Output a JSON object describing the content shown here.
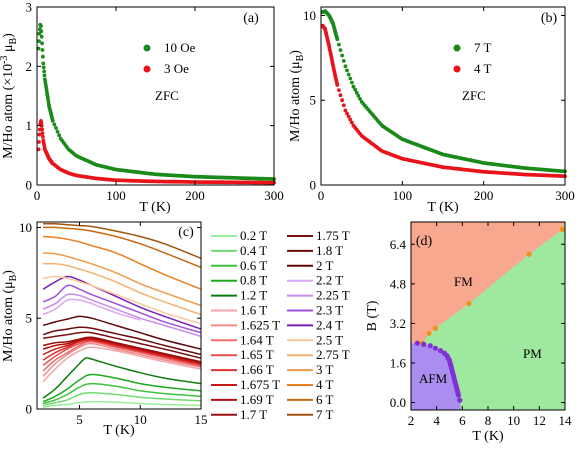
{
  "chart_data": [
    {
      "panel_label": "(a)",
      "type": "scatter",
      "xlabel": "T (K)",
      "ylabel": "M/Ho atom (×10⁻³ μ_B)",
      "ylabel_main": "M/Ho atom (×10",
      "ylabel_exp": "-3",
      "ylabel_mid": " μ",
      "ylabel_sub": "B",
      "ylabel_end": ")",
      "xlim": [
        0,
        300
      ],
      "ylim": [
        0,
        3
      ],
      "xticks": [
        "0",
        "100",
        "200",
        "300"
      ],
      "yticks": [
        "0",
        "1",
        "2",
        "3"
      ],
      "annotation": "ZFC",
      "series": [
        {
          "name": "10 Oe",
          "color": "#1a8a1a",
          "x": [
            2,
            3,
            4,
            5,
            6,
            8,
            10,
            15,
            20,
            30,
            40,
            50,
            75,
            100,
            150,
            200,
            250,
            300
          ],
          "y": [
            2.3,
            2.55,
            2.7,
            2.68,
            2.5,
            2.05,
            1.78,
            1.35,
            1.08,
            0.78,
            0.6,
            0.49,
            0.34,
            0.26,
            0.18,
            0.14,
            0.12,
            0.1
          ]
        },
        {
          "name": "3 Oe",
          "color": "#e8141a",
          "x": [
            2,
            3,
            4,
            5,
            6,
            8,
            10,
            15,
            20,
            30,
            40,
            50,
            75,
            100,
            150,
            200,
            250,
            300
          ],
          "y": [
            0.6,
            0.85,
            1.02,
            1.08,
            1.0,
            0.75,
            0.6,
            0.45,
            0.36,
            0.26,
            0.2,
            0.16,
            0.11,
            0.08,
            0.06,
            0.05,
            0.045,
            0.04
          ]
        }
      ]
    },
    {
      "panel_label": "(b)",
      "type": "scatter",
      "xlabel": "T (K)",
      "ylabel": "M/Ho atom (μ_B)",
      "ylabel_main": "M/Ho atom (μ",
      "ylabel_sub": "B",
      "ylabel_end": ")",
      "xlim": [
        0,
        300
      ],
      "ylim": [
        0,
        10.5
      ],
      "xticks": [
        "0",
        "100",
        "200",
        "300"
      ],
      "yticks": [
        "0",
        "5",
        "10"
      ],
      "annotation": "ZFC",
      "series": [
        {
          "name": "7 T",
          "color": "#1a8a1a",
          "x": [
            2,
            5,
            10,
            15,
            20,
            30,
            40,
            50,
            75,
            100,
            150,
            200,
            250,
            300
          ],
          "y": [
            10.2,
            10.25,
            10.0,
            9.5,
            8.6,
            7.0,
            5.8,
            4.9,
            3.5,
            2.7,
            1.8,
            1.3,
            1.0,
            0.8
          ]
        },
        {
          "name": "4 T",
          "color": "#e8141a",
          "x": [
            2,
            5,
            10,
            15,
            20,
            30,
            40,
            50,
            75,
            100,
            150,
            200,
            250,
            300
          ],
          "y": [
            9.4,
            9.2,
            8.2,
            7.0,
            5.9,
            4.4,
            3.5,
            2.9,
            2.0,
            1.55,
            1.05,
            0.78,
            0.62,
            0.52
          ]
        }
      ]
    },
    {
      "panel_label": "(c)",
      "type": "line",
      "xlabel": "T (K)",
      "ylabel": "M/Ho atom (μ_B)",
      "ylabel_main": "M/Ho atom (μ",
      "ylabel_sub": "B",
      "ylabel_end": ")",
      "xlim": [
        1.5,
        15
      ],
      "ylim": [
        0,
        10.3
      ],
      "xticks": [
        "5",
        "10",
        "15"
      ],
      "yticks": [
        "0",
        "5",
        "10"
      ],
      "series": [
        {
          "name": "0.2 T",
          "color": "#9aee9a",
          "x": [
            2,
            3,
            4,
            5,
            6,
            8,
            10,
            12,
            15
          ],
          "y": [
            0.1,
            0.2,
            0.25,
            0.35,
            0.4,
            0.38,
            0.3,
            0.25,
            0.2
          ]
        },
        {
          "name": "0.4 T",
          "color": "#6fdc6f",
          "x": [
            2,
            3,
            4,
            5,
            6,
            8,
            10,
            12,
            15
          ],
          "y": [
            0.2,
            0.35,
            0.5,
            0.8,
            0.9,
            0.8,
            0.65,
            0.55,
            0.45
          ]
        },
        {
          "name": "0.6 T",
          "color": "#3cc43c",
          "x": [
            2,
            3,
            4,
            5,
            6,
            8,
            10,
            12,
            15
          ],
          "y": [
            0.3,
            0.5,
            0.8,
            1.2,
            1.4,
            1.25,
            1.0,
            0.85,
            0.7
          ]
        },
        {
          "name": "0.8 T",
          "color": "#1fa81f",
          "x": [
            2,
            3,
            4,
            5,
            6,
            8,
            10,
            12,
            15
          ],
          "y": [
            0.4,
            0.7,
            1.1,
            1.6,
            1.9,
            1.7,
            1.4,
            1.2,
            1.0
          ]
        },
        {
          "name": "1.2 T",
          "color": "#0d7a0d",
          "x": [
            2,
            3,
            4,
            5,
            5.5,
            6,
            8,
            10,
            12,
            15
          ],
          "y": [
            0.6,
            1.1,
            1.8,
            2.5,
            2.8,
            2.75,
            2.35,
            2.0,
            1.7,
            1.4
          ]
        },
        {
          "name": "1.6 T",
          "color": "#f4a6a6",
          "x": [
            2,
            3,
            4,
            5,
            6,
            8,
            10,
            12,
            15
          ],
          "y": [
            1.5,
            2.2,
            2.8,
            3.2,
            3.4,
            3.2,
            2.9,
            2.6,
            2.2
          ]
        },
        {
          "name": "1.625 T",
          "color": "#f08a8a",
          "x": [
            2,
            3,
            4,
            5,
            6,
            8,
            10,
            12,
            15
          ],
          "y": [
            1.8,
            2.5,
            3.0,
            3.4,
            3.6,
            3.3,
            3.0,
            2.7,
            2.3
          ]
        },
        {
          "name": "1.64 T",
          "color": "#ec6e6e",
          "x": [
            2,
            3,
            4,
            5,
            6,
            8,
            10,
            12,
            15
          ],
          "y": [
            2.1,
            2.7,
            3.1,
            3.5,
            3.7,
            3.4,
            3.1,
            2.8,
            2.35
          ]
        },
        {
          "name": "1.65 T",
          "color": "#e65050",
          "x": [
            2,
            3,
            4,
            5,
            6,
            8,
            10,
            12,
            15
          ],
          "y": [
            2.4,
            2.9,
            3.3,
            3.6,
            3.75,
            3.45,
            3.15,
            2.85,
            2.4
          ]
        },
        {
          "name": "1.66 T",
          "color": "#de3030",
          "x": [
            2,
            3,
            4,
            5,
            6,
            8,
            10,
            12,
            15
          ],
          "y": [
            2.7,
            3.1,
            3.4,
            3.7,
            3.8,
            3.5,
            3.2,
            2.9,
            2.45
          ]
        },
        {
          "name": "1.675 T",
          "color": "#cf1818",
          "x": [
            2,
            3,
            4,
            5,
            6,
            8,
            10,
            12,
            15
          ],
          "y": [
            3.0,
            3.3,
            3.5,
            3.75,
            3.85,
            3.55,
            3.25,
            2.95,
            2.5
          ]
        },
        {
          "name": "1.69 T",
          "color": "#b40f0f",
          "x": [
            2,
            3,
            4,
            5,
            6,
            8,
            10,
            12,
            15
          ],
          "y": [
            3.3,
            3.5,
            3.6,
            3.8,
            3.9,
            3.6,
            3.3,
            3.0,
            2.55
          ]
        },
        {
          "name": "1.7 T",
          "color": "#961010",
          "x": [
            2,
            3,
            4,
            5,
            6,
            8,
            10,
            12,
            15
          ],
          "y": [
            3.5,
            3.65,
            3.7,
            3.85,
            3.95,
            3.65,
            3.35,
            3.05,
            2.6
          ]
        },
        {
          "name": "1.75 T",
          "color": "#7a1010",
          "x": [
            2,
            3,
            4,
            5,
            6,
            8,
            10,
            12,
            15
          ],
          "y": [
            3.9,
            4.0,
            4.1,
            4.2,
            4.2,
            3.9,
            3.6,
            3.3,
            2.8
          ]
        },
        {
          "name": "1.8 T",
          "color": "#6a0c0c",
          "x": [
            2,
            3,
            4,
            5,
            6,
            8,
            10,
            12,
            15
          ],
          "y": [
            4.1,
            4.3,
            4.4,
            4.5,
            4.45,
            4.15,
            3.85,
            3.5,
            3.0
          ]
        },
        {
          "name": "2 T",
          "color": "#5a0808",
          "x": [
            2,
            3,
            4,
            5,
            6,
            8,
            10,
            12,
            15
          ],
          "y": [
            4.6,
            4.8,
            4.95,
            5.1,
            5.0,
            4.6,
            4.2,
            3.8,
            3.3
          ]
        },
        {
          "name": "2.2 T",
          "color": "#dca6f4",
          "x": [
            2,
            3,
            4,
            5,
            6,
            8,
            10
          ],
          "y": [
            5.2,
            5.5,
            6.0,
            6.0,
            5.8,
            5.3,
            4.9
          ]
        },
        {
          "name": "2.25 T",
          "color": "#c98af0",
          "x": [
            2,
            3,
            4,
            5,
            6,
            8,
            10,
            12,
            15
          ],
          "y": [
            5.5,
            5.8,
            6.3,
            6.25,
            6.0,
            5.5,
            5.0,
            4.6,
            4.0
          ]
        },
        {
          "name": "2.3 T",
          "color": "#a050d8",
          "x": [
            2,
            3,
            4,
            5,
            6,
            8,
            10,
            12,
            15
          ],
          "y": [
            5.9,
            6.2,
            6.8,
            6.6,
            6.3,
            5.8,
            5.3,
            4.8,
            4.2
          ]
        },
        {
          "name": "2.4 T",
          "color": "#7a20b8",
          "x": [
            2,
            3,
            4,
            5,
            6,
            8,
            10,
            12,
            15
          ],
          "y": [
            6.6,
            7.0,
            7.3,
            7.1,
            6.8,
            6.2,
            5.6,
            5.1,
            4.4
          ]
        },
        {
          "name": "2.5 T",
          "color": "#f8c89a",
          "x": [
            2,
            3,
            4,
            5,
            6,
            8,
            10,
            12,
            15
          ],
          "y": [
            7.2,
            7.3,
            7.2,
            7.0,
            6.8,
            6.3,
            5.8,
            5.3,
            4.7
          ]
        },
        {
          "name": "2.75 T",
          "color": "#f4b070",
          "x": [
            2,
            3,
            4,
            5,
            6,
            8,
            10,
            12,
            15
          ],
          "y": [
            8.0,
            8.0,
            7.9,
            7.7,
            7.5,
            7.0,
            6.4,
            5.9,
            5.2
          ]
        },
        {
          "name": "3 T",
          "color": "#ee9a48",
          "x": [
            2,
            3,
            4,
            5,
            6,
            8,
            10,
            12,
            15
          ],
          "y": [
            8.6,
            8.55,
            8.4,
            8.2,
            8.0,
            7.5,
            6.9,
            6.4,
            5.7
          ]
        },
        {
          "name": "4 T",
          "color": "#e88020",
          "x": [
            2,
            3,
            4,
            5,
            6,
            8,
            10,
            12,
            15
          ],
          "y": [
            9.5,
            9.45,
            9.35,
            9.2,
            9.0,
            8.6,
            8.0,
            7.4,
            6.6
          ]
        },
        {
          "name": "6 T",
          "color": "#c86810",
          "x": [
            2,
            3,
            4,
            5,
            6,
            8,
            10,
            12,
            15
          ],
          "y": [
            10.0,
            10.0,
            9.95,
            9.9,
            9.8,
            9.5,
            9.1,
            8.6,
            7.8
          ]
        },
        {
          "name": "7 T",
          "color": "#a05410",
          "x": [
            2,
            3,
            4,
            5,
            6,
            8,
            10,
            12,
            15
          ],
          "y": [
            10.2,
            10.2,
            10.15,
            10.1,
            10.05,
            9.8,
            9.5,
            9.1,
            8.3
          ]
        }
      ]
    },
    {
      "panel_label": "(d)",
      "type": "scatter",
      "xlabel": "T (K)",
      "ylabel": "B (T)",
      "xlim": [
        2,
        14
      ],
      "ylim": [
        -0.3,
        7.3
      ],
      "xticks": [
        "2",
        "4",
        "6",
        "8",
        "10",
        "12",
        "14"
      ],
      "yticks": [
        "0.0",
        "1.6",
        "3.2",
        "4.8",
        "6.4"
      ],
      "regions": [
        "FM",
        "PM",
        "AFM"
      ],
      "colors": {
        "fm": "#f7a88e",
        "pm": "#9fe89f",
        "afm": "#a98ef0",
        "fm_points": "#f0901e",
        "afm_points": "#8030d8"
      },
      "series": [
        {
          "name": "",
          "role": "fm_boundary",
          "x": [
            2.9,
            3.4,
            3.9,
            6.5,
            11.2,
            13.8
          ],
          "y": [
            2.4,
            2.8,
            3.0,
            4.0,
            6.0,
            7.0
          ]
        },
        {
          "name": "",
          "role": "afm_boundary",
          "x": [
            2.5,
            3.0,
            3.5,
            3.9,
            4.3,
            4.6,
            4.8,
            4.9,
            5.0,
            5.05,
            5.1,
            5.15,
            5.2,
            5.25,
            5.3,
            5.35,
            5.4,
            5.45,
            5.5,
            5.55,
            5.6,
            5.65,
            5.7,
            5.8
          ],
          "y": [
            2.4,
            2.35,
            2.3,
            2.2,
            2.1,
            2.0,
            1.9,
            1.8,
            1.7,
            1.6,
            1.5,
            1.4,
            1.3,
            1.2,
            1.1,
            1.0,
            0.9,
            0.8,
            0.7,
            0.6,
            0.5,
            0.4,
            0.3,
            0.1
          ]
        }
      ]
    }
  ]
}
